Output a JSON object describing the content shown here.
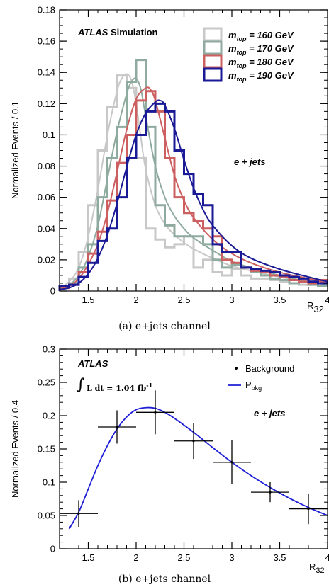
{
  "chart_data": [
    {
      "type": "line",
      "ylabel": "Normalized Events / 0.1",
      "xlabel": "R",
      "xlabel_sub": "32",
      "caption": "(a) e+jets channel",
      "brand_atlas": "ATLAS",
      "brand_rest": "Simulation",
      "channel": "e + jets",
      "xlim": [
        1.2,
        4.0
      ],
      "ylim": [
        0,
        0.18
      ],
      "xticks": [
        "1.5",
        "2",
        "2.5",
        "3",
        "3.5",
        "4"
      ],
      "xtick_values": [
        1.5,
        2.0,
        2.5,
        3.0,
        3.5,
        4.0
      ],
      "yticks": [
        "0",
        "0.02",
        "0.04",
        "0.06",
        "0.08",
        "0.1",
        "0.12",
        "0.14",
        "0.16",
        "0.18"
      ],
      "ytick_values": [
        0,
        0.02,
        0.04,
        0.06,
        0.08,
        0.1,
        0.12,
        0.14,
        0.16,
        0.18
      ],
      "legend_position": "top-right",
      "bin_edges": [
        1.2,
        1.3,
        1.4,
        1.5,
        1.6,
        1.7,
        1.8,
        1.9,
        2.0,
        2.1,
        2.2,
        2.3,
        2.4,
        2.5,
        2.6,
        2.7,
        2.8,
        2.9,
        3.0,
        3.1,
        3.2,
        3.3,
        3.4,
        3.5,
        3.6,
        3.7,
        3.8,
        3.9,
        4.0
      ],
      "series": [
        {
          "name_main": "m",
          "name_sub": "top",
          "name_tail": " = 160 GeV",
          "color": "#c8c8c8",
          "histogram": [
            0.003,
            0.008,
            0.025,
            0.055,
            0.09,
            0.118,
            0.138,
            0.13,
            0.085,
            0.04,
            0.033,
            0.028,
            0.03,
            0.035,
            0.015,
            0.02,
            0.012,
            0.01,
            0.014,
            0.01,
            0.008,
            0.008,
            0.007,
            0.006,
            0.005,
            0.004,
            0.006,
            0.003
          ],
          "curve_x": [
            1.2,
            1.3,
            1.4,
            1.5,
            1.6,
            1.7,
            1.8,
            1.85,
            1.9,
            1.95,
            2.0,
            2.05,
            2.1,
            2.2,
            2.3,
            2.4,
            2.5,
            2.6,
            2.8,
            3.0,
            3.2,
            3.5,
            3.8,
            4.0
          ],
          "curve_y": [
            0.002,
            0.006,
            0.015,
            0.035,
            0.065,
            0.1,
            0.128,
            0.136,
            0.139,
            0.135,
            0.12,
            0.098,
            0.078,
            0.055,
            0.043,
            0.036,
            0.031,
            0.027,
            0.021,
            0.016,
            0.013,
            0.009,
            0.006,
            0.004
          ]
        },
        {
          "name_main": "m",
          "name_sub": "top",
          "name_tail": " = 170 GeV",
          "color": "#8faa9f",
          "histogram": [
            0.002,
            0.005,
            0.015,
            0.03,
            0.06,
            0.085,
            0.105,
            0.134,
            0.148,
            0.105,
            0.055,
            0.042,
            0.035,
            0.035,
            0.035,
            0.03,
            0.02,
            0.015,
            0.017,
            0.015,
            0.012,
            0.01,
            0.008,
            0.007,
            0.005,
            0.006,
            0.004,
            0.003
          ],
          "curve_x": [
            1.2,
            1.3,
            1.4,
            1.5,
            1.6,
            1.7,
            1.8,
            1.9,
            1.95,
            2.0,
            2.05,
            2.1,
            2.2,
            2.3,
            2.4,
            2.5,
            2.6,
            2.8,
            3.0,
            3.2,
            3.5,
            3.8,
            4.0
          ],
          "curve_y": [
            0.001,
            0.004,
            0.01,
            0.022,
            0.042,
            0.072,
            0.102,
            0.126,
            0.134,
            0.136,
            0.129,
            0.112,
            0.08,
            0.06,
            0.048,
            0.04,
            0.034,
            0.026,
            0.019,
            0.015,
            0.01,
            0.006,
            0.004
          ]
        },
        {
          "name_main": "m",
          "name_sub": "top",
          "name_tail": " = 180 GeV",
          "color": "#cc5f5f",
          "histogram": [
            0.002,
            0.004,
            0.012,
            0.024,
            0.038,
            0.058,
            0.082,
            0.1,
            0.122,
            0.128,
            0.115,
            0.085,
            0.06,
            0.05,
            0.045,
            0.04,
            0.035,
            0.02,
            0.018,
            0.015,
            0.013,
            0.012,
            0.01,
            0.009,
            0.007,
            0.006,
            0.005,
            0.007
          ],
          "curve_x": [
            1.2,
            1.3,
            1.4,
            1.5,
            1.6,
            1.7,
            1.8,
            1.9,
            2.0,
            2.1,
            2.15,
            2.2,
            2.3,
            2.4,
            2.5,
            2.6,
            2.8,
            3.0,
            3.2,
            3.5,
            3.8,
            4.0
          ],
          "curve_y": [
            0.001,
            0.003,
            0.008,
            0.017,
            0.03,
            0.05,
            0.076,
            0.103,
            0.123,
            0.13,
            0.129,
            0.122,
            0.098,
            0.074,
            0.058,
            0.047,
            0.033,
            0.024,
            0.018,
            0.012,
            0.008,
            0.005
          ]
        },
        {
          "name_main": "m",
          "name_sub": "top",
          "name_tail": " = 190 GeV",
          "color": "#1a1a96",
          "histogram": [
            0.003,
            0.004,
            0.009,
            0.018,
            0.032,
            0.04,
            0.06,
            0.085,
            0.1,
            0.115,
            0.12,
            0.115,
            0.09,
            0.075,
            0.062,
            0.055,
            0.03,
            0.025,
            0.025,
            0.015,
            0.014,
            0.013,
            0.012,
            0.01,
            0.009,
            0.008,
            0.006,
            0.005
          ],
          "curve_x": [
            1.2,
            1.3,
            1.4,
            1.5,
            1.6,
            1.7,
            1.8,
            1.9,
            2.0,
            2.1,
            2.2,
            2.25,
            2.3,
            2.4,
            2.5,
            2.6,
            2.7,
            2.8,
            3.0,
            3.2,
            3.5,
            3.8,
            4.0
          ],
          "curve_y": [
            0.001,
            0.002,
            0.005,
            0.011,
            0.021,
            0.036,
            0.056,
            0.079,
            0.1,
            0.114,
            0.121,
            0.122,
            0.119,
            0.104,
            0.084,
            0.066,
            0.052,
            0.042,
            0.029,
            0.021,
            0.014,
            0.009,
            0.006
          ]
        }
      ]
    },
    {
      "type": "scatter",
      "ylabel": "Normalized Events / 0.4",
      "xlabel": "R",
      "xlabel_sub": "32",
      "caption": "(b) e+jets channel",
      "brand_atlas": "ATLAS",
      "lumi_text": "L dt = 1.04 fb",
      "lumi_sup": "-1",
      "channel": "e + jets",
      "xlim": [
        1.2,
        4.0
      ],
      "ylim": [
        0,
        0.3
      ],
      "xticks": [
        "1.5",
        "2",
        "2.5",
        "3",
        "3.5",
        "4"
      ],
      "xtick_values": [
        1.5,
        2.0,
        2.5,
        3.0,
        3.5,
        4.0
      ],
      "yticks": [
        "0",
        "0.05",
        "0.1",
        "0.15",
        "0.2",
        "0.25",
        "0.3"
      ],
      "ytick_values": [
        0,
        0.05,
        0.1,
        0.15,
        0.2,
        0.25,
        0.3
      ],
      "legend_position": "top-right",
      "series": [
        {
          "name": "Background",
          "color": "#000000",
          "x": [
            1.4,
            1.8,
            2.2,
            2.6,
            3.0,
            3.4,
            3.8
          ],
          "y": [
            0.053,
            0.183,
            0.205,
            0.162,
            0.13,
            0.085,
            0.06
          ],
          "x_err": [
            0.2,
            0.2,
            0.2,
            0.2,
            0.2,
            0.2,
            0.2
          ],
          "y_err": [
            0.02,
            0.025,
            0.033,
            0.027,
            0.033,
            0.015,
            0.023
          ]
        },
        {
          "name_main": "P",
          "name_sub": "bkg",
          "color": "#1f1fd6",
          "curve_x": [
            1.3,
            1.4,
            1.5,
            1.6,
            1.7,
            1.8,
            1.9,
            2.0,
            2.1,
            2.2,
            2.3,
            2.4,
            2.6,
            2.8,
            3.0,
            3.2,
            3.4,
            3.6,
            3.8,
            4.0
          ],
          "curve_y": [
            0.03,
            0.055,
            0.09,
            0.125,
            0.155,
            0.18,
            0.198,
            0.209,
            0.212,
            0.211,
            0.205,
            0.196,
            0.175,
            0.152,
            0.13,
            0.11,
            0.092,
            0.076,
            0.062,
            0.05
          ]
        }
      ]
    }
  ]
}
